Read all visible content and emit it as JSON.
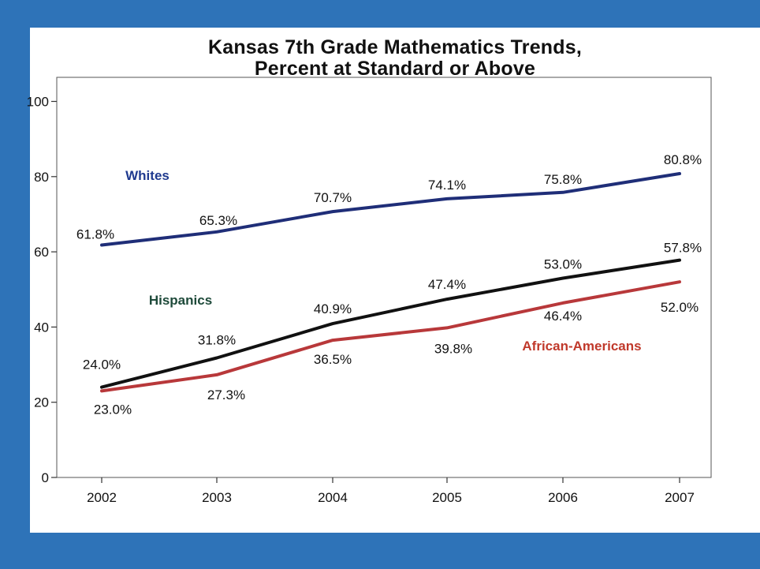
{
  "chart_data": {
    "type": "line",
    "title": [
      "Kansas 7th Grade Mathematics Trends,",
      "Percent at Standard or Above"
    ],
    "xlabel": "",
    "ylabel": "",
    "x": [
      "2002",
      "2003",
      "2004",
      "2005",
      "2006",
      "2007"
    ],
    "ylim": [
      0,
      100
    ],
    "yticks": [
      "0",
      "20",
      "40",
      "60",
      "80",
      "100"
    ],
    "grid": false,
    "series": [
      {
        "name": "Whites",
        "color": "#1f2e78",
        "values": [
          61.8,
          65.3,
          70.7,
          74.1,
          75.8,
          80.8
        ],
        "labels": [
          "61.8%",
          "65.3%",
          "70.7%",
          "74.1%",
          "75.8%",
          "80.8%"
        ]
      },
      {
        "name": "Hispanics",
        "color": "#111111",
        "values": [
          24.0,
          31.8,
          40.9,
          47.4,
          53.0,
          57.8
        ],
        "labels": [
          "24.0%",
          "31.8%",
          "40.9%",
          "47.4%",
          "53.0%",
          "57.8%"
        ]
      },
      {
        "name": "African-Americans",
        "color": "#b8383a",
        "values": [
          23.0,
          27.3,
          36.5,
          39.8,
          46.4,
          52.0
        ],
        "labels": [
          "23.0%",
          "27.3%",
          "36.5%",
          "39.8%",
          "46.4%",
          "52.0%"
        ]
      }
    ]
  }
}
